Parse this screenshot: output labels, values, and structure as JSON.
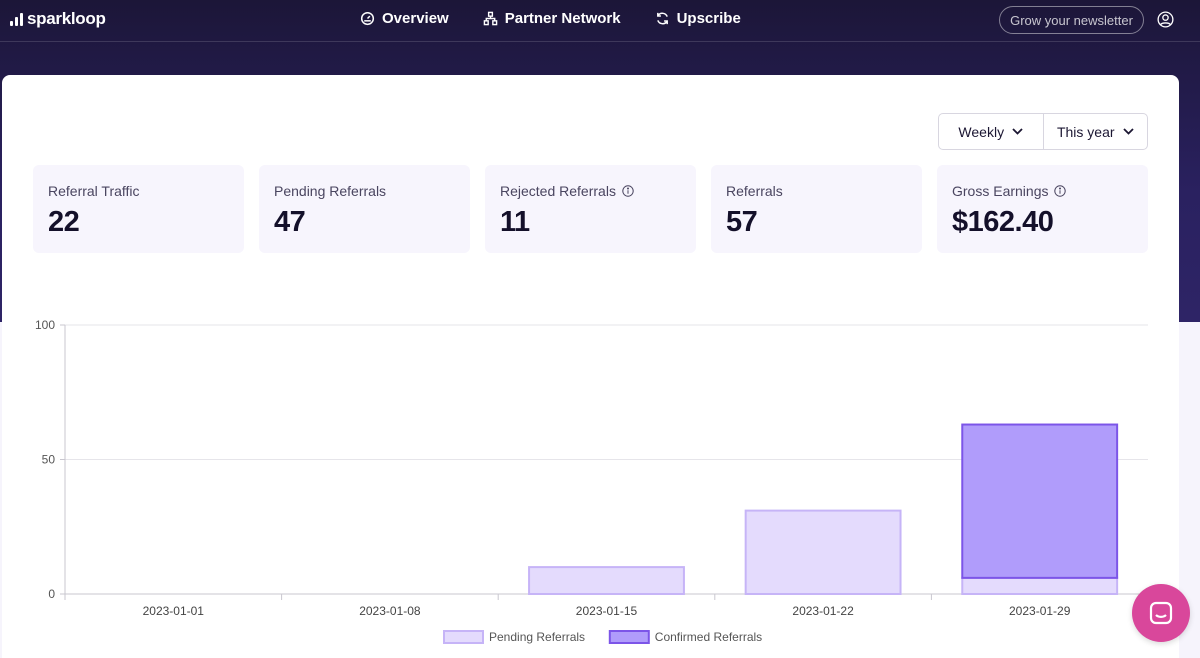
{
  "brand": {
    "name": "sparkloop"
  },
  "nav": {
    "links": [
      {
        "label": "Overview",
        "icon": "dashboard-icon"
      },
      {
        "label": "Partner Network",
        "icon": "network-icon"
      },
      {
        "label": "Upscribe",
        "icon": "refresh-icon"
      }
    ],
    "cta_label": "Grow your newsletter",
    "account_icon": "user-circle-icon"
  },
  "filters": {
    "period_label": "Weekly",
    "range_label": "This year"
  },
  "stats": [
    {
      "label": "Referral Traffic",
      "value": "22",
      "info": false
    },
    {
      "label": "Pending Referrals",
      "value": "47",
      "info": false
    },
    {
      "label": "Rejected Referrals",
      "value": "11",
      "info": true
    },
    {
      "label": "Referrals",
      "value": "57",
      "info": false
    },
    {
      "label": "Gross Earnings",
      "value": "$162.40",
      "info": true
    }
  ],
  "colors": {
    "pending_fill": "#e4dbfd",
    "pending_stroke": "#c6b4f7",
    "confirmed_fill": "#b09cfb",
    "confirmed_stroke": "#7c55e8",
    "chat": "#d9479b"
  },
  "chart_data": {
    "type": "bar",
    "stacked": true,
    "categories": [
      "2023-01-01",
      "2023-01-08",
      "2023-01-15",
      "2023-01-22",
      "2023-01-29"
    ],
    "series": [
      {
        "name": "Pending Referrals",
        "values": [
          0,
          0,
          10,
          31,
          6
        ]
      },
      {
        "name": "Confirmed Referrals",
        "values": [
          0,
          0,
          0,
          0,
          57
        ]
      }
    ],
    "yticks": [
      0,
      50,
      100
    ],
    "ylim": [
      0,
      100
    ],
    "grid": true,
    "legend": "bottom"
  }
}
